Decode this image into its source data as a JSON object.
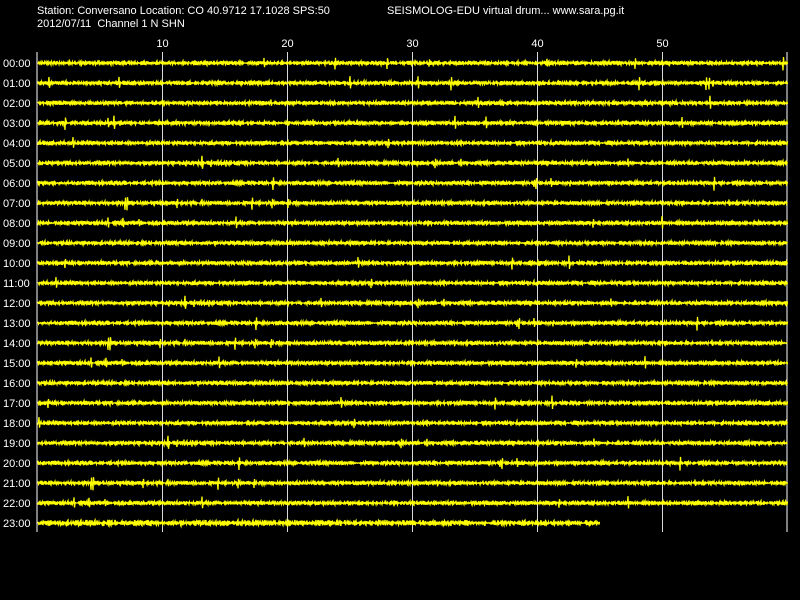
{
  "header": {
    "station_line": "Station: Conversano Location: CO 40.9712 17.1028 SPS:50",
    "date_line": "2012/07/11  Channel 1 N SHN",
    "app_line": "SEISMOLOG-EDU virtual drum... www.sara.pg.it"
  },
  "colors": {
    "background": "#000000",
    "trace": "#ffff00",
    "grid": "#ffffff",
    "text": "#ffffff"
  },
  "chart_data": {
    "type": "line",
    "title": "SEISMOLOG-EDU virtual drum... www.sara.pg.it",
    "x_axis": {
      "unit_minutes_per_row": 60,
      "range": [
        0,
        60
      ],
      "tick_values": [
        10,
        20,
        30,
        40,
        50
      ],
      "tick_labels": [
        "10",
        "20",
        "30",
        "40",
        "50"
      ],
      "position": "top"
    },
    "rows": [
      "00:00",
      "01:00",
      "02:00",
      "03:00",
      "04:00",
      "05:00",
      "06:00",
      "07:00",
      "08:00",
      "09:00",
      "10:00",
      "11:00",
      "12:00",
      "13:00",
      "14:00",
      "15:00",
      "16:00",
      "17:00",
      "18:00",
      "19:00",
      "20:00",
      "21:00",
      "22:00",
      "23:00"
    ],
    "last_row_end_minute": 45,
    "grid": true
  }
}
